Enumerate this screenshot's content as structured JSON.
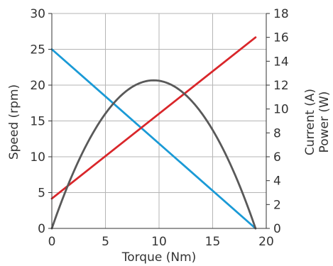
{
  "chart_data": {
    "type": "line",
    "title": "",
    "xlabel": "Torque (Nm)",
    "ylabel_left": "Speed (rpm)",
    "ylabel_right": [
      "Current (A)",
      "Power (W)"
    ],
    "xlim": [
      0,
      20
    ],
    "ylim_left": [
      0,
      30
    ],
    "ylim_right": [
      0,
      18
    ],
    "x_ticks": [
      0,
      5,
      10,
      15,
      20
    ],
    "y_ticks_left": [
      0,
      5,
      10,
      15,
      20,
      25,
      30
    ],
    "y_ticks_right": [
      0,
      2,
      4,
      6,
      8,
      10,
      12,
      14,
      16,
      18
    ],
    "grid": true,
    "series": [
      {
        "axis": "left",
        "color": "#1a9ad6",
        "shape": "linear",
        "x": [
          0,
          19
        ],
        "y": [
          25,
          0
        ]
      },
      {
        "axis": "right",
        "color": "#d9262a",
        "shape": "linear",
        "x": [
          0,
          19
        ],
        "y": [
          2.5,
          16
        ]
      },
      {
        "axis": "right",
        "color": "#595959",
        "shape": "parabola",
        "x": [
          0,
          9.5,
          19
        ],
        "y": [
          0,
          12.4,
          0
        ]
      }
    ]
  }
}
